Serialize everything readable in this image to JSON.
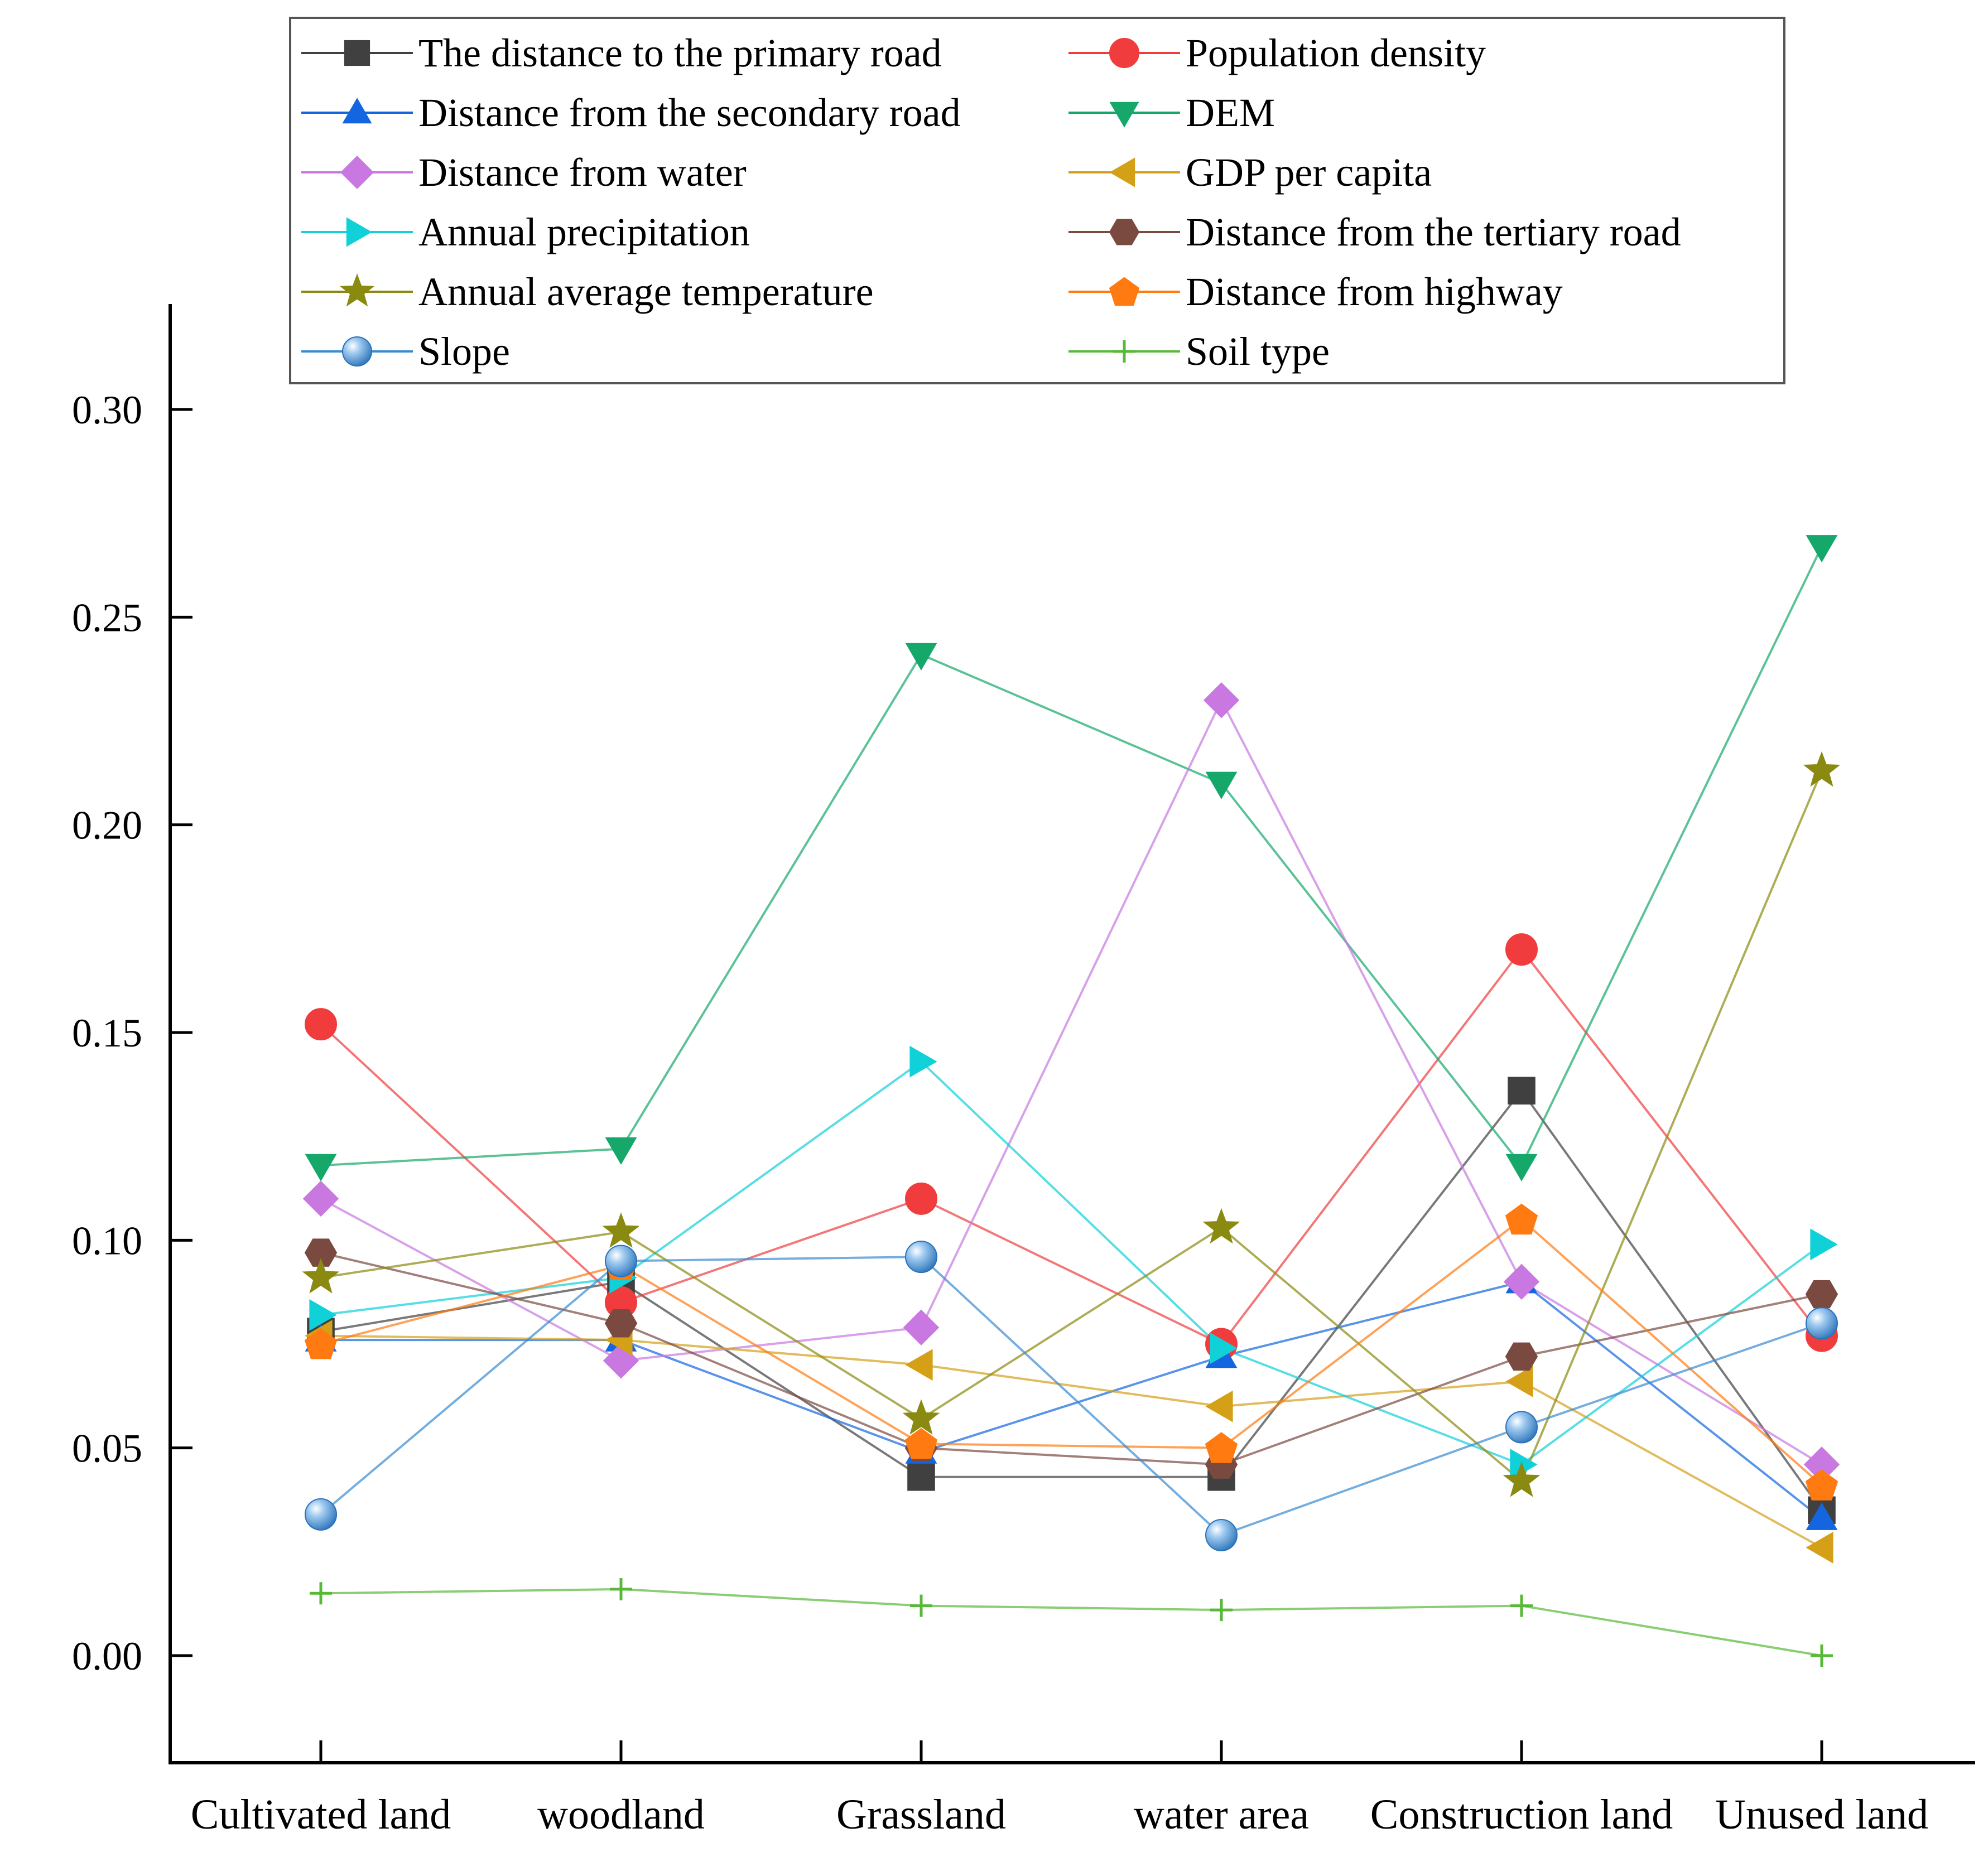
{
  "chart_data": {
    "type": "line",
    "title": "",
    "xlabel": "",
    "ylabel": "",
    "ylim": [
      -0.025,
      0.325
    ],
    "yticks": [
      "0.00",
      "0.05",
      "0.10",
      "0.15",
      "0.20",
      "0.25",
      "0.30"
    ],
    "yticks_values": [
      0,
      0.05,
      0.1,
      0.15,
      0.2,
      0.25,
      0.3
    ],
    "categories": [
      "Cultivated land",
      "woodland",
      "Grassland",
      "water area",
      "Construction land",
      "Unused land"
    ],
    "grid": false,
    "legend_position": "top",
    "series": [
      {
        "name": "The distance to the primary road",
        "color": "#404040",
        "marker": "square",
        "values": [
          0.078,
          0.09,
          0.043,
          0.043,
          0.136,
          0.035
        ]
      },
      {
        "name": "Population density",
        "color": "#f03c3c",
        "marker": "circle",
        "values": [
          0.152,
          0.085,
          0.11,
          0.075,
          0.17,
          0.077
        ]
      },
      {
        "name": "Distance from the secondary road",
        "color": "#1466e0",
        "marker": "triangle-up",
        "values": [
          0.076,
          0.076,
          0.049,
          0.072,
          0.09,
          0.033
        ]
      },
      {
        "name": "DEM",
        "color": "#15a86a",
        "marker": "triangle-down",
        "values": [
          0.118,
          0.122,
          0.241,
          0.21,
          0.118,
          0.267
        ]
      },
      {
        "name": "Distance from water",
        "color": "#c878e0",
        "marker": "diamond",
        "values": [
          0.11,
          0.071,
          0.079,
          0.23,
          0.09,
          0.046
        ]
      },
      {
        "name": "GDP per capita",
        "color": "#d4a018",
        "marker": "triangle-left",
        "values": [
          0.077,
          0.076,
          0.07,
          0.06,
          0.066,
          0.026
        ]
      },
      {
        "name": "Annual precipitation",
        "color": "#10d0d8",
        "marker": "triangle-right",
        "values": [
          0.082,
          0.091,
          0.143,
          0.074,
          0.046,
          0.099
        ]
      },
      {
        "name": "Distance from the tertiary road",
        "color": "#7a4a40",
        "marker": "hexagon",
        "values": [
          0.097,
          0.08,
          0.05,
          0.046,
          0.072,
          0.087
        ]
      },
      {
        "name": "Annual average temperature",
        "color": "#8a8a10",
        "marker": "star",
        "values": [
          0.091,
          0.102,
          0.057,
          0.103,
          0.042,
          0.213
        ]
      },
      {
        "name": "Distance from highway",
        "color": "#ff7a10",
        "marker": "pentagon",
        "values": [
          0.075,
          0.094,
          0.051,
          0.05,
          0.105,
          0.041
        ]
      },
      {
        "name": "Slope",
        "color": "#3a8ad0",
        "marker": "sphere",
        "values": [
          0.034,
          0.095,
          0.096,
          0.029,
          0.055,
          0.08
        ]
      },
      {
        "name": "Soil type",
        "color": "#58b838",
        "marker": "plus",
        "values": [
          0.015,
          0.016,
          0.012,
          0.011,
          0.012,
          0.0
        ]
      }
    ]
  }
}
